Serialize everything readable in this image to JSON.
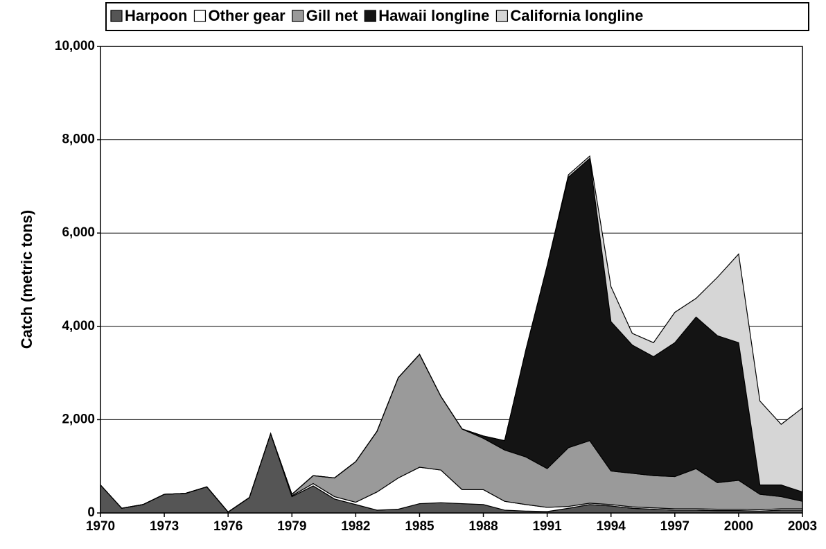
{
  "chart_data": {
    "type": "stacked-area",
    "y_label": "Catch (metric tons)",
    "x": [
      1970,
      1971,
      1972,
      1973,
      1974,
      1975,
      1976,
      1977,
      1978,
      1979,
      1980,
      1981,
      1982,
      1983,
      1984,
      1985,
      1986,
      1987,
      1988,
      1989,
      1990,
      1991,
      1992,
      1993,
      1994,
      1995,
      1996,
      1997,
      1998,
      1999,
      2000,
      2001,
      2002,
      2003
    ],
    "xlim": [
      1970,
      2003
    ],
    "xticks": [
      1970,
      1973,
      1976,
      1979,
      1982,
      1985,
      1988,
      1991,
      1994,
      1997,
      2000,
      2003
    ],
    "ylim": [
      0,
      10000
    ],
    "yticks": [
      0,
      {
        "value": 2000,
        "label": "2,000"
      },
      {
        "value": 4000,
        "label": "4,000"
      },
      {
        "value": 6000,
        "label": "6,000"
      },
      {
        "value": 8000,
        "label": "8,000"
      },
      {
        "value": 10000,
        "label": "10,000"
      }
    ],
    "grid": true,
    "legend": "top",
    "series": [
      {
        "name": "Harpoon",
        "color": "#555555",
        "values": [
          600,
          100,
          180,
          400,
          420,
          560,
          20,
          330,
          1700,
          350,
          580,
          300,
          180,
          60,
          80,
          200,
          220,
          200,
          180,
          60,
          40,
          30,
          100,
          180,
          150,
          100,
          80,
          60,
          60,
          50,
          50,
          40,
          60,
          60
        ]
      },
      {
        "name": "Other gear",
        "color": "#ffffff",
        "values": [
          0,
          0,
          0,
          0,
          0,
          0,
          0,
          0,
          0,
          20,
          50,
          50,
          50,
          390,
          670,
          780,
          700,
          300,
          320,
          190,
          140,
          90,
          40,
          30,
          30,
          30,
          30,
          30,
          30,
          30,
          30,
          30,
          30,
          30
        ]
      },
      {
        "name": "Gill net",
        "color": "#9a9a9a",
        "values": [
          0,
          0,
          0,
          0,
          0,
          0,
          0,
          0,
          0,
          30,
          170,
          400,
          870,
          1300,
          2150,
          2420,
          1580,
          1300,
          1100,
          1100,
          1020,
          830,
          1260,
          1340,
          720,
          720,
          690,
          690,
          860,
          570,
          620,
          330,
          260,
          160
        ]
      },
      {
        "name": "Hawaii longline",
        "color": "#141414",
        "values": [
          0,
          0,
          0,
          0,
          0,
          0,
          0,
          0,
          0,
          0,
          0,
          0,
          0,
          0,
          0,
          0,
          0,
          0,
          50,
          200,
          2300,
          4350,
          5800,
          6050,
          3200,
          2750,
          2550,
          2870,
          3250,
          3150,
          2950,
          200,
          250,
          200
        ]
      },
      {
        "name": "California longline",
        "color": "#d6d6d6",
        "values": [
          0,
          0,
          0,
          0,
          0,
          0,
          0,
          0,
          0,
          0,
          0,
          0,
          0,
          0,
          0,
          0,
          0,
          0,
          0,
          0,
          0,
          0,
          50,
          50,
          750,
          250,
          300,
          650,
          400,
          1250,
          1900,
          1800,
          1300,
          1800
        ]
      }
    ]
  }
}
